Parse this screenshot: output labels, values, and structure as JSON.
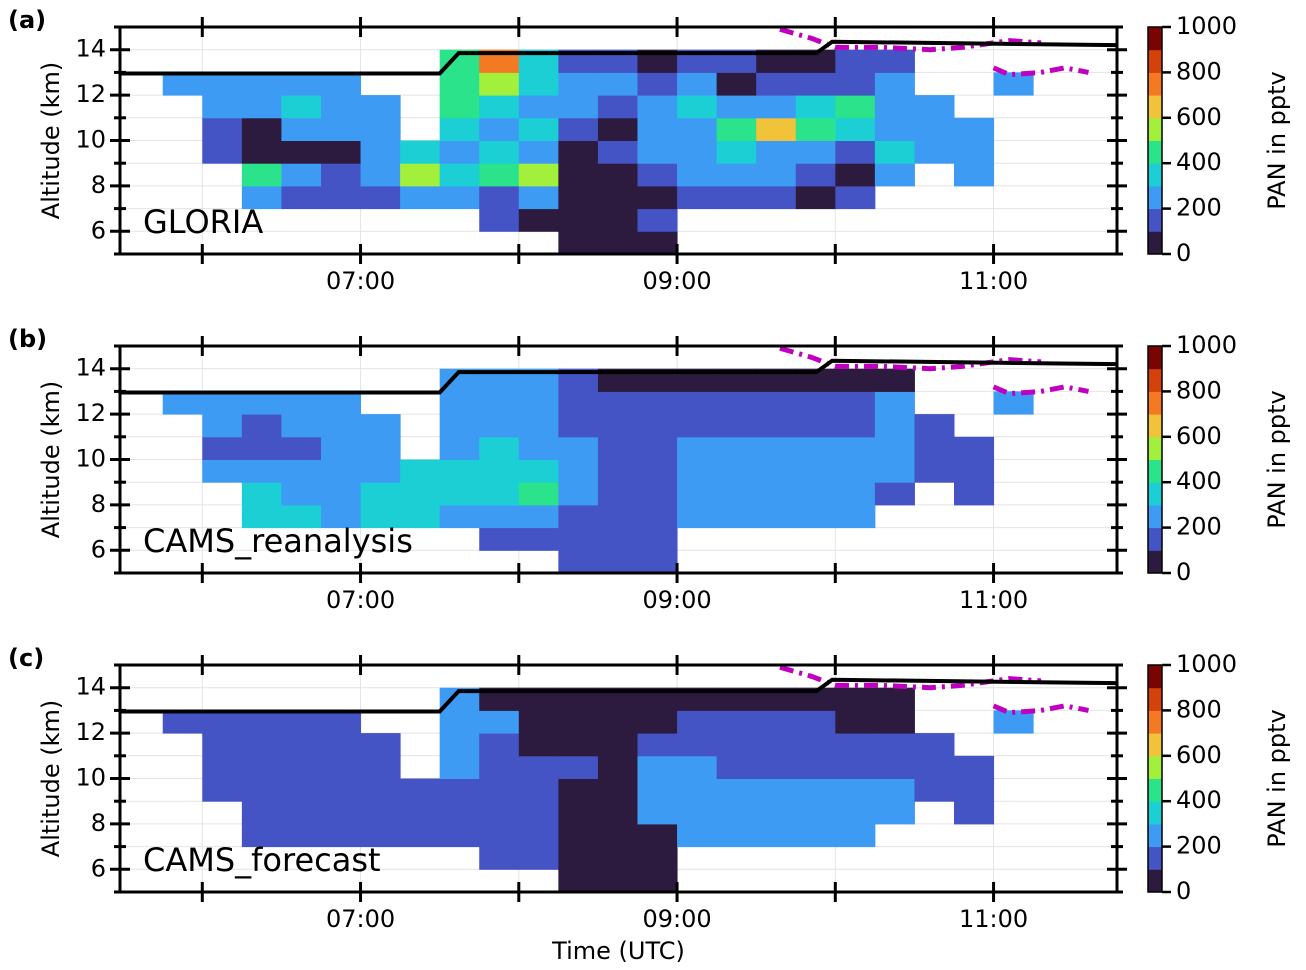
{
  "chart_data": [
    {
      "type": "heatmap",
      "panel_label": "(a)",
      "annotation": "GLORIA",
      "ylabel": "Altitude (km)",
      "xlim": [
        5.48,
        11.78
      ],
      "ylim": [
        5,
        15
      ],
      "xticks": [
        {
          "value": 7,
          "label": "07:00"
        },
        {
          "value": 9,
          "label": "09:00"
        },
        {
          "value": 11,
          "label": "11:00"
        }
      ],
      "xticks_minor": [
        6,
        8,
        10
      ],
      "yticks": [
        6,
        8,
        10,
        12,
        14
      ],
      "yticks_minor": [
        5,
        7,
        9,
        11,
        13,
        15
      ],
      "grid": true,
      "x_edges": [
        5.75,
        6.0,
        6.25,
        6.5,
        6.75,
        7.0,
        7.25,
        7.5,
        7.75,
        8.0,
        8.25,
        8.5,
        8.75,
        9.0,
        9.25,
        9.5,
        9.75,
        10.0,
        10.25,
        10.5,
        10.75,
        11.0,
        11.25
      ],
      "y_edges": [
        5,
        6,
        7,
        8,
        9,
        10,
        11,
        12,
        13,
        14
      ],
      "z": [
        [
          null,
          null,
          null,
          null,
          null,
          null,
          null,
          null,
          null,
          null,
          50,
          50,
          50,
          null,
          null,
          null,
          null,
          null,
          null,
          null,
          null,
          null
        ],
        [
          null,
          null,
          null,
          null,
          null,
          null,
          null,
          null,
          150,
          50,
          50,
          50,
          150,
          null,
          null,
          null,
          null,
          null,
          null,
          null,
          null,
          null
        ],
        [
          null,
          null,
          250,
          150,
          150,
          150,
          250,
          250,
          150,
          250,
          50,
          50,
          50,
          150,
          150,
          150,
          50,
          150,
          null,
          null,
          null,
          null
        ],
        [
          null,
          null,
          450,
          250,
          150,
          250,
          550,
          350,
          450,
          550,
          50,
          50,
          150,
          250,
          250,
          250,
          150,
          50,
          250,
          null,
          250,
          null
        ],
        [
          null,
          150,
          50,
          50,
          50,
          250,
          350,
          250,
          350,
          250,
          50,
          150,
          250,
          250,
          350,
          250,
          250,
          150,
          350,
          250,
          250,
          null
        ],
        [
          null,
          150,
          50,
          250,
          250,
          250,
          null,
          350,
          250,
          350,
          150,
          50,
          250,
          250,
          450,
          650,
          450,
          350,
          250,
          250,
          250,
          null
        ],
        [
          null,
          250,
          250,
          350,
          250,
          250,
          null,
          450,
          350,
          250,
          250,
          150,
          250,
          350,
          250,
          250,
          350,
          450,
          250,
          250,
          null,
          null
        ],
        [
          250,
          250,
          250,
          250,
          250,
          null,
          null,
          450,
          550,
          350,
          250,
          250,
          150,
          250,
          50,
          150,
          150,
          150,
          250,
          null,
          null,
          250
        ],
        [
          null,
          null,
          null,
          null,
          null,
          null,
          null,
          450,
          750,
          350,
          150,
          150,
          50,
          150,
          150,
          50,
          50,
          150,
          150,
          null,
          null,
          null
        ]
      ],
      "flight_altitude": {
        "color": "#000000",
        "x": [
          5.48,
          7.5,
          7.62,
          9.88,
          9.98,
          11.78
        ],
        "y": [
          12.95,
          12.95,
          13.85,
          13.85,
          14.35,
          14.2
        ]
      },
      "tropopause": {
        "color": "#c000c0",
        "x": [
          9.65,
          9.85,
          10.0,
          10.3,
          10.6,
          10.8,
          11.0,
          11.1,
          11.3,
          null,
          11.0,
          11.1,
          11.3,
          11.45,
          11.6
        ],
        "y": [
          14.9,
          14.5,
          14.1,
          14.1,
          14.0,
          14.1,
          14.3,
          14.4,
          14.3,
          null,
          13.2,
          12.9,
          13.0,
          13.2,
          13.0
        ]
      },
      "colorbar": {
        "label": "PAN in pptv",
        "levels": [
          0,
          100,
          200,
          300,
          400,
          500,
          600,
          700,
          800,
          900,
          1000
        ],
        "colors": [
          "#2d1b3f",
          "#4454c4",
          "#3e9bf4",
          "#1ccfd5",
          "#2ae38a",
          "#a2f03c",
          "#f0c33a",
          "#f37a22",
          "#d4420b",
          "#7a0403"
        ],
        "ticks": [
          0,
          200,
          400,
          600,
          800,
          1000
        ]
      }
    },
    {
      "type": "heatmap",
      "panel_label": "(b)",
      "annotation": "CAMS_reanalysis",
      "ylabel": "Altitude (km)",
      "xlim": [
        5.48,
        11.78
      ],
      "ylim": [
        5,
        15
      ],
      "xticks": [
        {
          "value": 7,
          "label": "07:00"
        },
        {
          "value": 9,
          "label": "09:00"
        },
        {
          "value": 11,
          "label": "11:00"
        }
      ],
      "xticks_minor": [
        6,
        8,
        10
      ],
      "yticks": [
        6,
        8,
        10,
        12,
        14
      ],
      "yticks_minor": [
        5,
        7,
        9,
        11,
        13,
        15
      ],
      "grid": true,
      "x_edges": [
        5.75,
        6.0,
        6.25,
        6.5,
        6.75,
        7.0,
        7.25,
        7.5,
        7.75,
        8.0,
        8.25,
        8.5,
        8.75,
        9.0,
        9.25,
        9.5,
        9.75,
        10.0,
        10.25,
        10.5,
        10.75,
        11.0,
        11.25
      ],
      "y_edges": [
        5,
        6,
        7,
        8,
        9,
        10,
        11,
        12,
        13,
        14
      ],
      "z": [
        [
          null,
          null,
          null,
          null,
          null,
          null,
          null,
          null,
          null,
          null,
          150,
          150,
          150,
          null,
          null,
          null,
          null,
          null,
          null,
          null,
          null,
          null
        ],
        [
          null,
          null,
          null,
          null,
          null,
          null,
          null,
          null,
          150,
          150,
          150,
          150,
          150,
          null,
          null,
          null,
          null,
          null,
          null,
          null,
          null,
          null
        ],
        [
          null,
          null,
          350,
          350,
          250,
          350,
          350,
          250,
          250,
          250,
          150,
          150,
          150,
          250,
          250,
          250,
          250,
          250,
          null,
          null,
          null,
          null
        ],
        [
          null,
          null,
          350,
          250,
          250,
          350,
          350,
          350,
          350,
          450,
          250,
          150,
          150,
          250,
          250,
          250,
          250,
          250,
          150,
          null,
          150,
          null
        ],
        [
          null,
          250,
          250,
          250,
          250,
          250,
          350,
          350,
          350,
          350,
          250,
          150,
          150,
          250,
          250,
          250,
          250,
          250,
          250,
          150,
          150,
          null
        ],
        [
          null,
          150,
          150,
          150,
          250,
          250,
          null,
          250,
          350,
          250,
          250,
          150,
          150,
          250,
          250,
          250,
          250,
          250,
          250,
          150,
          150,
          null
        ],
        [
          null,
          250,
          150,
          250,
          250,
          250,
          null,
          250,
          250,
          250,
          150,
          150,
          150,
          150,
          150,
          150,
          150,
          150,
          250,
          150,
          null,
          null
        ],
        [
          250,
          250,
          250,
          250,
          250,
          null,
          null,
          250,
          250,
          250,
          150,
          150,
          150,
          150,
          150,
          150,
          150,
          150,
          250,
          null,
          null,
          250
        ],
        [
          null,
          null,
          null,
          null,
          null,
          null,
          null,
          250,
          250,
          250,
          150,
          50,
          50,
          50,
          50,
          50,
          50,
          50,
          50,
          null,
          null,
          null
        ]
      ],
      "flight_altitude": {
        "color": "#000000",
        "x": [
          5.48,
          7.5,
          7.62,
          9.88,
          9.98,
          11.78
        ],
        "y": [
          12.95,
          12.95,
          13.85,
          13.85,
          14.35,
          14.2
        ]
      },
      "tropopause": {
        "color": "#c000c0",
        "x": [
          9.65,
          9.85,
          10.0,
          10.3,
          10.6,
          10.8,
          11.0,
          11.1,
          11.3,
          null,
          11.0,
          11.1,
          11.3,
          11.45,
          11.6
        ],
        "y": [
          14.9,
          14.5,
          14.1,
          14.1,
          14.0,
          14.1,
          14.3,
          14.4,
          14.3,
          null,
          13.2,
          12.9,
          13.0,
          13.2,
          13.0
        ]
      },
      "colorbar": {
        "label": "PAN in pptv",
        "levels": [
          0,
          100,
          200,
          300,
          400,
          500,
          600,
          700,
          800,
          900,
          1000
        ],
        "colors": [
          "#2d1b3f",
          "#4454c4",
          "#3e9bf4",
          "#1ccfd5",
          "#2ae38a",
          "#a2f03c",
          "#f0c33a",
          "#f37a22",
          "#d4420b",
          "#7a0403"
        ],
        "ticks": [
          0,
          200,
          400,
          600,
          800,
          1000
        ]
      }
    },
    {
      "type": "heatmap",
      "panel_label": "(c)",
      "annotation": "CAMS_forecast",
      "ylabel": "Altitude (km)",
      "xlabel": "Time (UTC)",
      "xlim": [
        5.48,
        11.78
      ],
      "ylim": [
        5,
        15
      ],
      "xticks": [
        {
          "value": 7,
          "label": "07:00"
        },
        {
          "value": 9,
          "label": "09:00"
        },
        {
          "value": 11,
          "label": "11:00"
        }
      ],
      "xticks_minor": [
        6,
        8,
        10
      ],
      "yticks": [
        6,
        8,
        10,
        12,
        14
      ],
      "yticks_minor": [
        5,
        7,
        9,
        11,
        13,
        15
      ],
      "grid": true,
      "x_edges": [
        5.75,
        6.0,
        6.25,
        6.5,
        6.75,
        7.0,
        7.25,
        7.5,
        7.75,
        8.0,
        8.25,
        8.5,
        8.75,
        9.0,
        9.25,
        9.5,
        9.75,
        10.0,
        10.25,
        10.5,
        10.75,
        11.0,
        11.25
      ],
      "y_edges": [
        5,
        6,
        7,
        8,
        9,
        10,
        11,
        12,
        13,
        14
      ],
      "z": [
        [
          null,
          null,
          null,
          null,
          null,
          null,
          null,
          null,
          null,
          null,
          50,
          50,
          50,
          null,
          null,
          null,
          null,
          null,
          null,
          null,
          null,
          null
        ],
        [
          null,
          null,
          null,
          null,
          null,
          null,
          null,
          null,
          150,
          150,
          50,
          50,
          50,
          null,
          null,
          null,
          null,
          null,
          null,
          null,
          null,
          null
        ],
        [
          null,
          null,
          150,
          150,
          150,
          150,
          150,
          150,
          150,
          150,
          50,
          50,
          50,
          250,
          250,
          250,
          250,
          250,
          null,
          null,
          null,
          null
        ],
        [
          null,
          null,
          150,
          150,
          150,
          150,
          150,
          150,
          150,
          150,
          50,
          50,
          250,
          250,
          250,
          250,
          250,
          250,
          250,
          null,
          150,
          null
        ],
        [
          null,
          150,
          150,
          150,
          150,
          150,
          150,
          150,
          150,
          150,
          50,
          50,
          250,
          250,
          250,
          250,
          250,
          250,
          250,
          150,
          150,
          null
        ],
        [
          null,
          150,
          150,
          150,
          150,
          150,
          null,
          250,
          150,
          150,
          150,
          50,
          250,
          250,
          150,
          150,
          150,
          150,
          150,
          150,
          150,
          null
        ],
        [
          null,
          150,
          150,
          150,
          150,
          150,
          null,
          250,
          150,
          50,
          50,
          50,
          150,
          150,
          150,
          150,
          150,
          150,
          150,
          150,
          null,
          null
        ],
        [
          150,
          150,
          150,
          150,
          150,
          null,
          null,
          250,
          250,
          50,
          50,
          50,
          50,
          150,
          150,
          150,
          150,
          50,
          50,
          null,
          null,
          250
        ],
        [
          null,
          null,
          null,
          null,
          null,
          null,
          null,
          250,
          50,
          50,
          50,
          50,
          50,
          50,
          50,
          50,
          50,
          50,
          50,
          null,
          null,
          null
        ]
      ],
      "flight_altitude": {
        "color": "#000000",
        "x": [
          5.48,
          7.5,
          7.62,
          9.88,
          9.98,
          11.78
        ],
        "y": [
          12.95,
          12.95,
          13.85,
          13.85,
          14.35,
          14.2
        ]
      },
      "tropopause": {
        "color": "#c000c0",
        "x": [
          9.65,
          9.85,
          10.0,
          10.3,
          10.6,
          10.8,
          11.0,
          11.1,
          11.3,
          null,
          11.0,
          11.1,
          11.3,
          11.45,
          11.6
        ],
        "y": [
          14.9,
          14.5,
          14.1,
          14.1,
          14.0,
          14.1,
          14.3,
          14.4,
          14.3,
          null,
          13.2,
          12.9,
          13.0,
          13.2,
          13.0
        ]
      },
      "colorbar": {
        "label": "PAN in pptv",
        "levels": [
          0,
          100,
          200,
          300,
          400,
          500,
          600,
          700,
          800,
          900,
          1000
        ],
        "colors": [
          "#2d1b3f",
          "#4454c4",
          "#3e9bf4",
          "#1ccfd5",
          "#2ae38a",
          "#a2f03c",
          "#f0c33a",
          "#f37a22",
          "#d4420b",
          "#7a0403"
        ],
        "ticks": [
          0,
          200,
          400,
          600,
          800,
          1000
        ]
      }
    }
  ]
}
